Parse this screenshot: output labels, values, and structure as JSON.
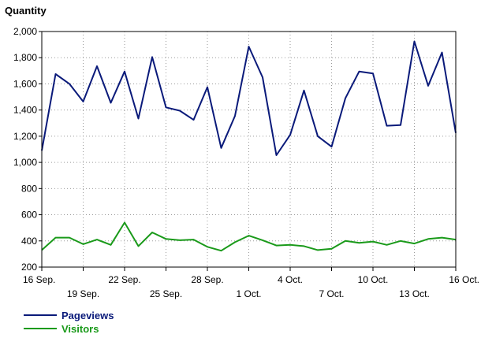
{
  "chart_data": {
    "type": "line",
    "title": "",
    "ylabel": "Quantity",
    "xlabel": "",
    "ylim": [
      200,
      2000
    ],
    "yticks": [
      200,
      400,
      600,
      800,
      1000,
      1200,
      1400,
      1600,
      1800,
      2000
    ],
    "ytick_labels": [
      "200",
      "400",
      "600",
      "800",
      "1,000",
      "1,200",
      "1,400",
      "1,600",
      "1,800",
      "2,000"
    ],
    "grid": true,
    "legend_position": "bottom-left",
    "x": [
      "16 Sep.",
      "17 Sep.",
      "18 Sep.",
      "19 Sep.",
      "20 Sep.",
      "21 Sep.",
      "22 Sep.",
      "23 Sep.",
      "24 Sep.",
      "25 Sep.",
      "26 Sep.",
      "27 Sep.",
      "28 Sep.",
      "29 Sep.",
      "30 Sep.",
      "1 Oct.",
      "2 Oct.",
      "3 Oct.",
      "4 Oct.",
      "5 Oct.",
      "6 Oct.",
      "7 Oct.",
      "8 Oct.",
      "9 Oct.",
      "10 Oct.",
      "11 Oct.",
      "12 Oct.",
      "13 Oct.",
      "14 Oct.",
      "15 Oct.",
      "16 Oct."
    ],
    "xtick_labels": [
      {
        "label": "16 Sep.",
        "index": 0,
        "row": 1
      },
      {
        "label": "19 Sep.",
        "index": 3,
        "row": 2
      },
      {
        "label": "22 Sep.",
        "index": 6,
        "row": 1
      },
      {
        "label": "25 Sep.",
        "index": 9,
        "row": 2
      },
      {
        "label": "28 Sep.",
        "index": 12,
        "row": 1
      },
      {
        "label": "1 Oct.",
        "index": 15,
        "row": 2
      },
      {
        "label": "4 Oct.",
        "index": 18,
        "row": 1
      },
      {
        "label": "7 Oct.",
        "index": 21,
        "row": 2
      },
      {
        "label": "10 Oct.",
        "index": 24,
        "row": 1
      },
      {
        "label": "13 Oct.",
        "index": 27,
        "row": 2
      },
      {
        "label": "16 Oct.",
        "index": 30,
        "row": 1
      }
    ],
    "series": [
      {
        "name": "Pageviews",
        "color": "#0a1a7a",
        "values": [
          1090,
          1675,
          1600,
          1465,
          1735,
          1455,
          1695,
          1335,
          1805,
          1420,
          1395,
          1325,
          1575,
          1110,
          1355,
          1885,
          1650,
          1055,
          1210,
          1550,
          1200,
          1120,
          1490,
          1695,
          1680,
          1280,
          1285,
          1925,
          1585,
          1840,
          1225
        ]
      },
      {
        "name": "Visitors",
        "color": "#1a9a1a",
        "values": [
          330,
          425,
          425,
          375,
          410,
          370,
          540,
          360,
          465,
          415,
          405,
          410,
          355,
          325,
          390,
          440,
          405,
          365,
          370,
          360,
          330,
          340,
          400,
          385,
          395,
          370,
          400,
          380,
          415,
          425,
          410
        ]
      }
    ]
  }
}
